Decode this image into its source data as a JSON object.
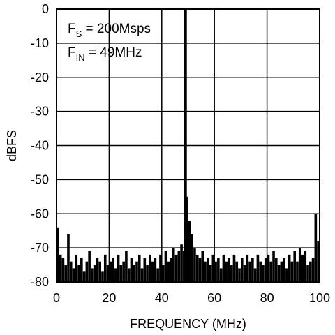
{
  "chart_data": {
    "type": "bar",
    "xlabel": "FREQUENCY (MHz)",
    "ylabel": "dBFS",
    "xlim": [
      0,
      100
    ],
    "ylim": [
      -80,
      0
    ],
    "xticks": [
      "0",
      "20",
      "40",
      "60",
      "80",
      "100"
    ],
    "yticks": [
      "0",
      "-10",
      "-20",
      "-30",
      "-40",
      "-50",
      "-60",
      "-70",
      "-80"
    ],
    "grid": true,
    "annotations": [
      {
        "main": "F",
        "sub": "S",
        "rest": " = 200Msps"
      },
      {
        "main": "F",
        "sub": "IN",
        "rest": " = 49MHz"
      }
    ],
    "series": [
      {
        "x": [
          0.5,
          1.5,
          2.5,
          3.5,
          4.5,
          5.5,
          6.5,
          7.5,
          8.5,
          9.5,
          10.5,
          11.5,
          12.5,
          13.5,
          14.5,
          15.5,
          16.5,
          17.5,
          18.5,
          19.5,
          20.5,
          21.5,
          22.5,
          23.5,
          24.5,
          25.5,
          26.5,
          27.5,
          28.5,
          29.5,
          30.5,
          31.5,
          32.5,
          33.5,
          34.5,
          35.5,
          36.5,
          37.5,
          38.5,
          39.5,
          40.5,
          41.5,
          42.5,
          43.5,
          44.5,
          45.5,
          46.5,
          47.5,
          48.5,
          49.0,
          49.5,
          50.5,
          51.5,
          52.5,
          53.5,
          54.5,
          55.5,
          56.5,
          57.5,
          58.5,
          59.5,
          60.5,
          61.5,
          62.5,
          63.5,
          64.5,
          65.5,
          66.5,
          67.5,
          68.5,
          69.5,
          70.5,
          71.5,
          72.5,
          73.5,
          74.5,
          75.5,
          76.5,
          77.5,
          78.5,
          79.5,
          80.5,
          81.5,
          82.5,
          83.5,
          84.5,
          85.5,
          86.5,
          87.5,
          88.5,
          89.5,
          90.5,
          91.5,
          92.5,
          93.5,
          94.5,
          95.5,
          96.5,
          97.5,
          98.5,
          99.5
        ],
        "values": [
          -64,
          -72,
          -73,
          -75,
          -66,
          -74,
          -76,
          -72,
          -75,
          -73,
          -77,
          -74,
          -71,
          -76,
          -75,
          -73,
          -74,
          -77,
          -72,
          -75,
          -74,
          -73,
          -76,
          -72,
          -75,
          -74,
          -71,
          -76,
          -73,
          -75,
          -74,
          -72,
          -76,
          -73,
          -75,
          -72,
          -74,
          -73,
          -76,
          -72,
          -75,
          -71,
          -74,
          -73,
          -70,
          -72,
          -71,
          -69,
          -71,
          0,
          -55,
          -62,
          -66,
          -70,
          -72,
          -73,
          -71,
          -74,
          -73,
          -75,
          -72,
          -74,
          -73,
          -76,
          -72,
          -74,
          -73,
          -75,
          -72,
          -74,
          -76,
          -73,
          -75,
          -72,
          -74,
          -73,
          -76,
          -72,
          -74,
          -75,
          -73,
          -72,
          -74,
          -71,
          -73,
          -75,
          -74,
          -73,
          -76,
          -72,
          -74,
          -71,
          -74,
          -70,
          -72,
          -71,
          -75,
          -74,
          -73,
          -60,
          -68
        ]
      }
    ]
  }
}
